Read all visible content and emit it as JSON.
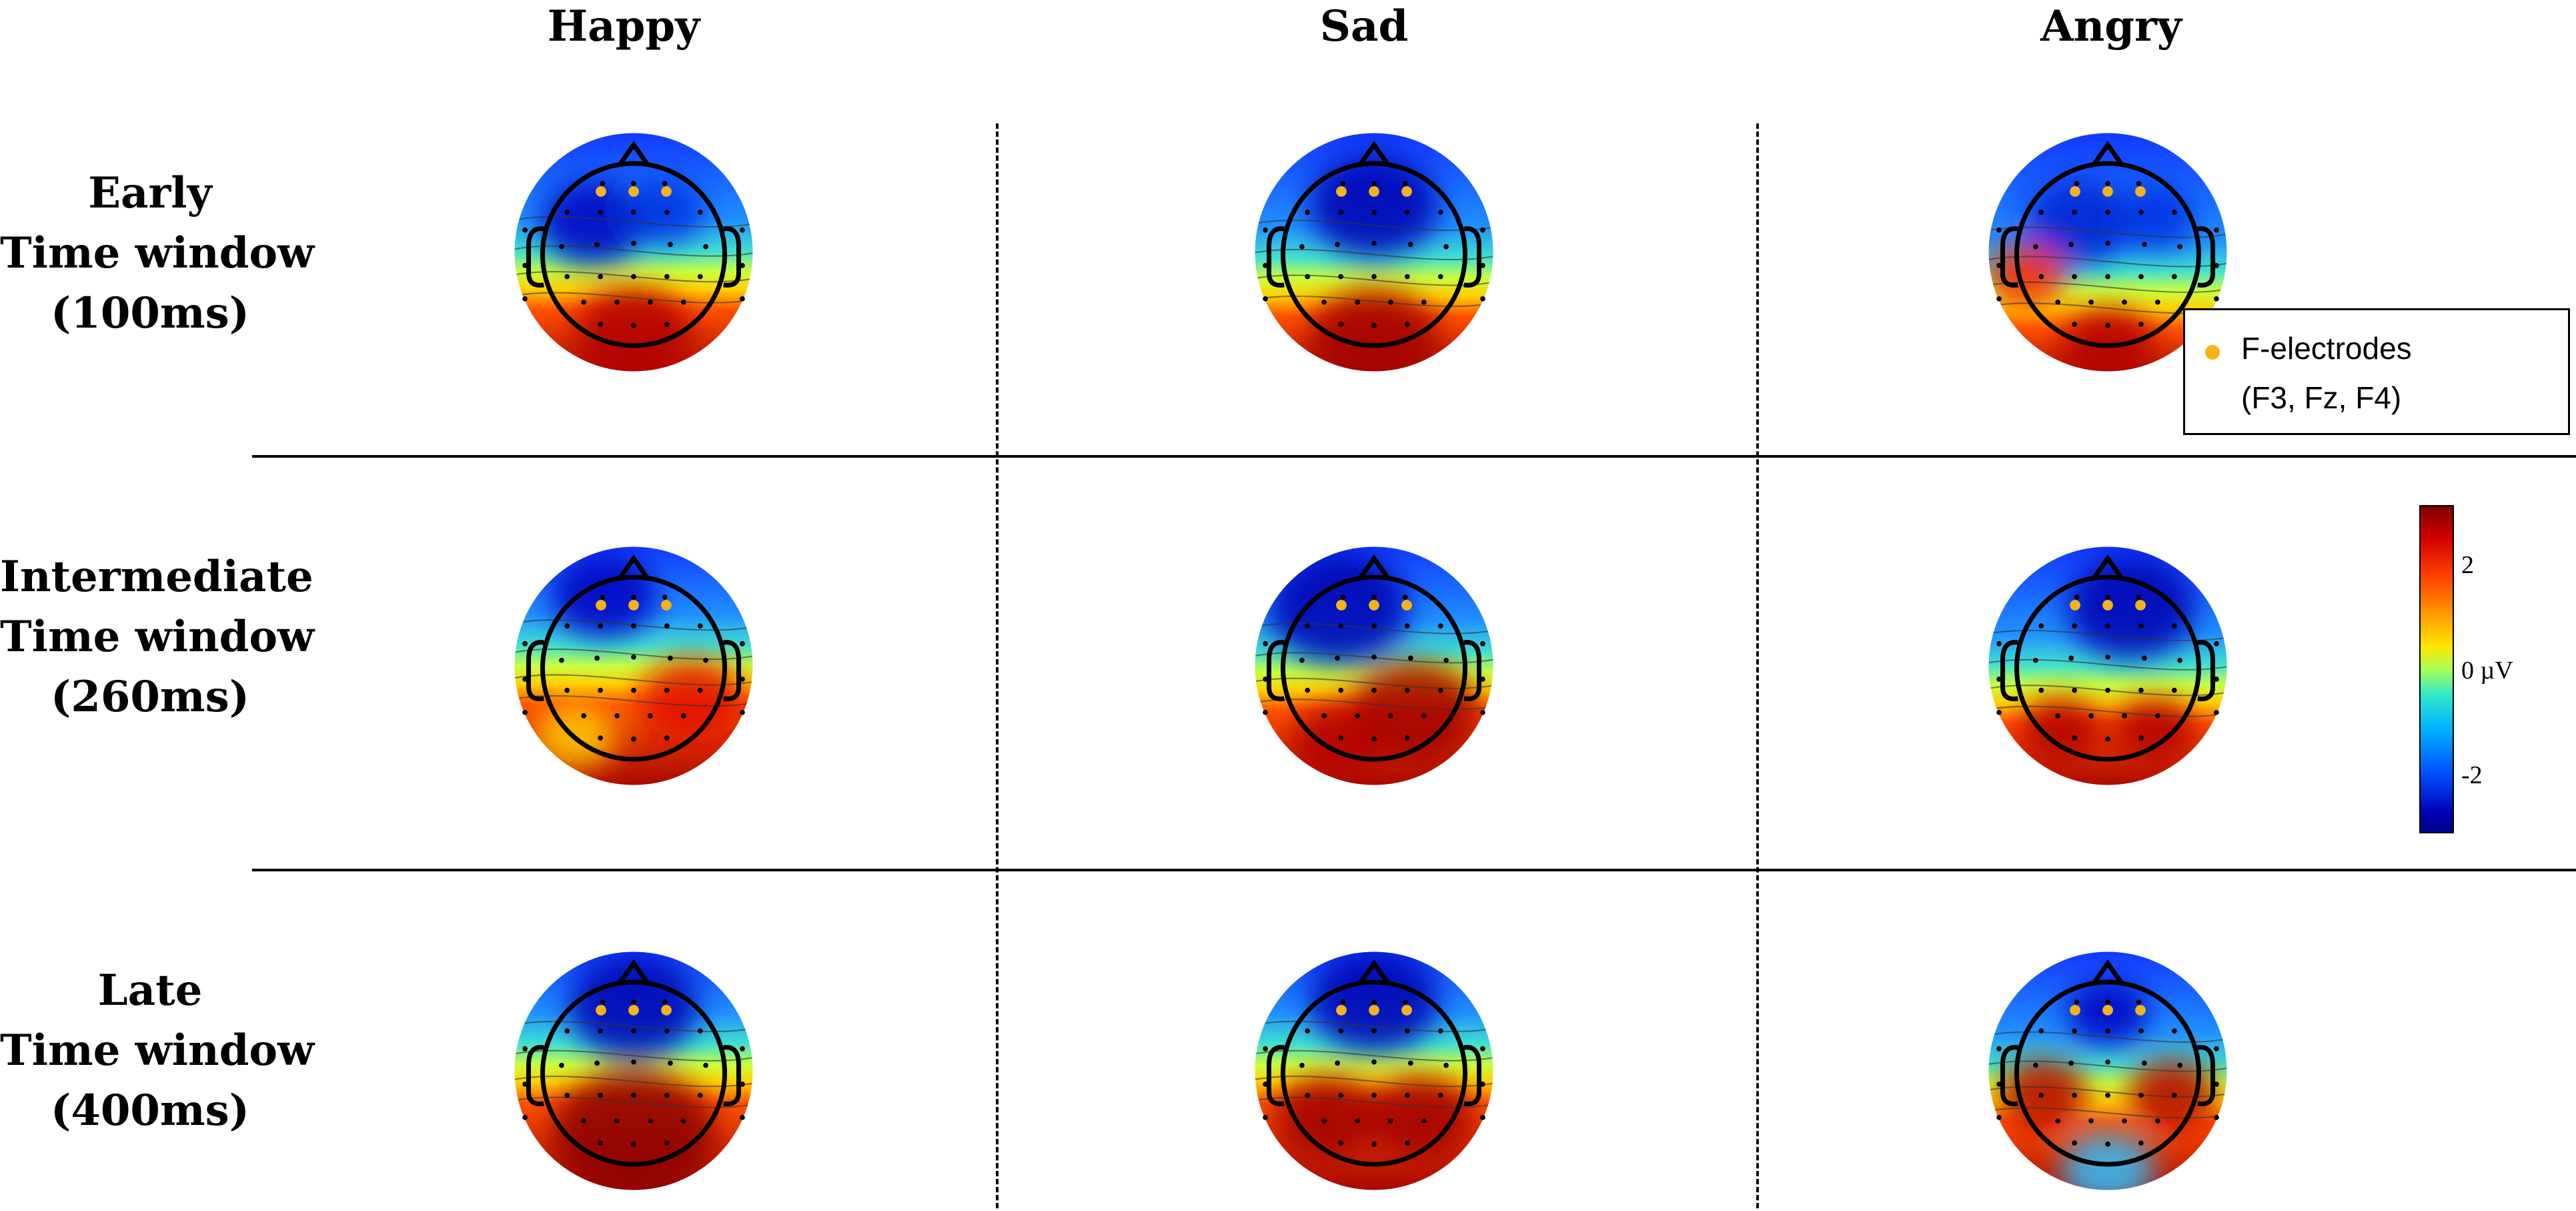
{
  "columns": [
    "Happy",
    "Sad",
    "Angry"
  ],
  "rows": [
    {
      "line1": "Early",
      "line2": "Time window",
      "line3": "(100ms)"
    },
    {
      "line1": "Intermediate",
      "line2": "Time window",
      "line3": "(260ms)"
    },
    {
      "line1": "Late",
      "line2": "Time window",
      "line3": "(400ms)"
    }
  ],
  "legend": {
    "label": "F-electrodes",
    "sublabel": "(F3,  Fz, F4)",
    "marker_color": "#f5b21a"
  },
  "colorbar": {
    "ticks": [
      {
        "value": 2,
        "label": "2"
      },
      {
        "value": 0,
        "label": "0 µV"
      },
      {
        "value": -2,
        "label": "-2"
      }
    ],
    "unit": "µV"
  },
  "palette": {
    "positive": "#b00000",
    "neutral": "#aaff55",
    "negative": "#0000c8"
  },
  "maps": [
    [
      {
        "frontal": "neg",
        "posterior": "pos",
        "variant": "early-happy"
      },
      {
        "frontal": "neg",
        "posterior": "pos",
        "variant": "early-sad"
      },
      {
        "frontal": "neg",
        "posterior": "pos",
        "variant": "early-angry"
      }
    ],
    [
      {
        "frontal": "neg",
        "posterior": "pos",
        "variant": "mid-happy"
      },
      {
        "frontal": "neg",
        "posterior": "pos",
        "variant": "mid-sad"
      },
      {
        "frontal": "neg",
        "posterior": "pos",
        "variant": "mid-angry"
      }
    ],
    [
      {
        "frontal": "neg",
        "posterior": "pos",
        "variant": "late-happy"
      },
      {
        "frontal": "neg",
        "posterior": "pos",
        "variant": "late-sad"
      },
      {
        "frontal": "neg",
        "posterior": "pos",
        "variant": "late-angry"
      }
    ]
  ]
}
